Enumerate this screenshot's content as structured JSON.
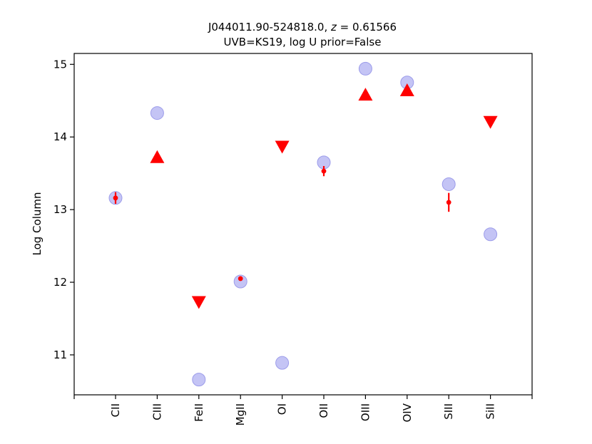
{
  "chart_data": {
    "type": "scatter",
    "title_line1": "J044011.90-524818.0, ",
    "title_z_symbol": "z",
    "title_z_value": " = 0.61566",
    "title_line2": "UVB=KS19, log U prior=False",
    "ylabel": "Log Column",
    "xlabel": "",
    "ylim": [
      10.45,
      15.15
    ],
    "yticks": [
      11,
      12,
      13,
      14,
      15
    ],
    "ytick_labels": [
      "11",
      "12",
      "13",
      "14",
      "15"
    ],
    "categories": [
      "CII",
      "CIII",
      "FeII",
      "MgII",
      "OI",
      "OII",
      "OIII",
      "OIV",
      "SIII",
      "SiII"
    ],
    "grid": false,
    "series": [
      {
        "kind": "model",
        "color": "#b0b0f2",
        "values": [
          13.16,
          14.33,
          10.66,
          12.01,
          10.89,
          13.65,
          14.94,
          14.75,
          13.35,
          12.66
        ]
      },
      {
        "kind": "detection",
        "color": "#ff0000",
        "points": [
          {
            "category": "CII",
            "y": 13.16,
            "err": 0.08
          },
          {
            "category": "MgII",
            "y": 12.05,
            "err": 0.02
          },
          {
            "category": "OII",
            "y": 13.53,
            "err": 0.07
          },
          {
            "category": "SIII",
            "y": 13.1,
            "err": 0.13
          }
        ]
      },
      {
        "kind": "lower-limit",
        "color": "#ff0000",
        "points": [
          {
            "category": "CIII",
            "y": 13.72
          },
          {
            "category": "OIII",
            "y": 14.58
          },
          {
            "category": "OIV",
            "y": 14.64
          }
        ]
      },
      {
        "kind": "upper-limit",
        "color": "#ff0000",
        "points": [
          {
            "category": "FeII",
            "y": 11.73
          },
          {
            "category": "OI",
            "y": 13.87
          },
          {
            "category": "SiII",
            "y": 14.21
          }
        ]
      }
    ]
  }
}
